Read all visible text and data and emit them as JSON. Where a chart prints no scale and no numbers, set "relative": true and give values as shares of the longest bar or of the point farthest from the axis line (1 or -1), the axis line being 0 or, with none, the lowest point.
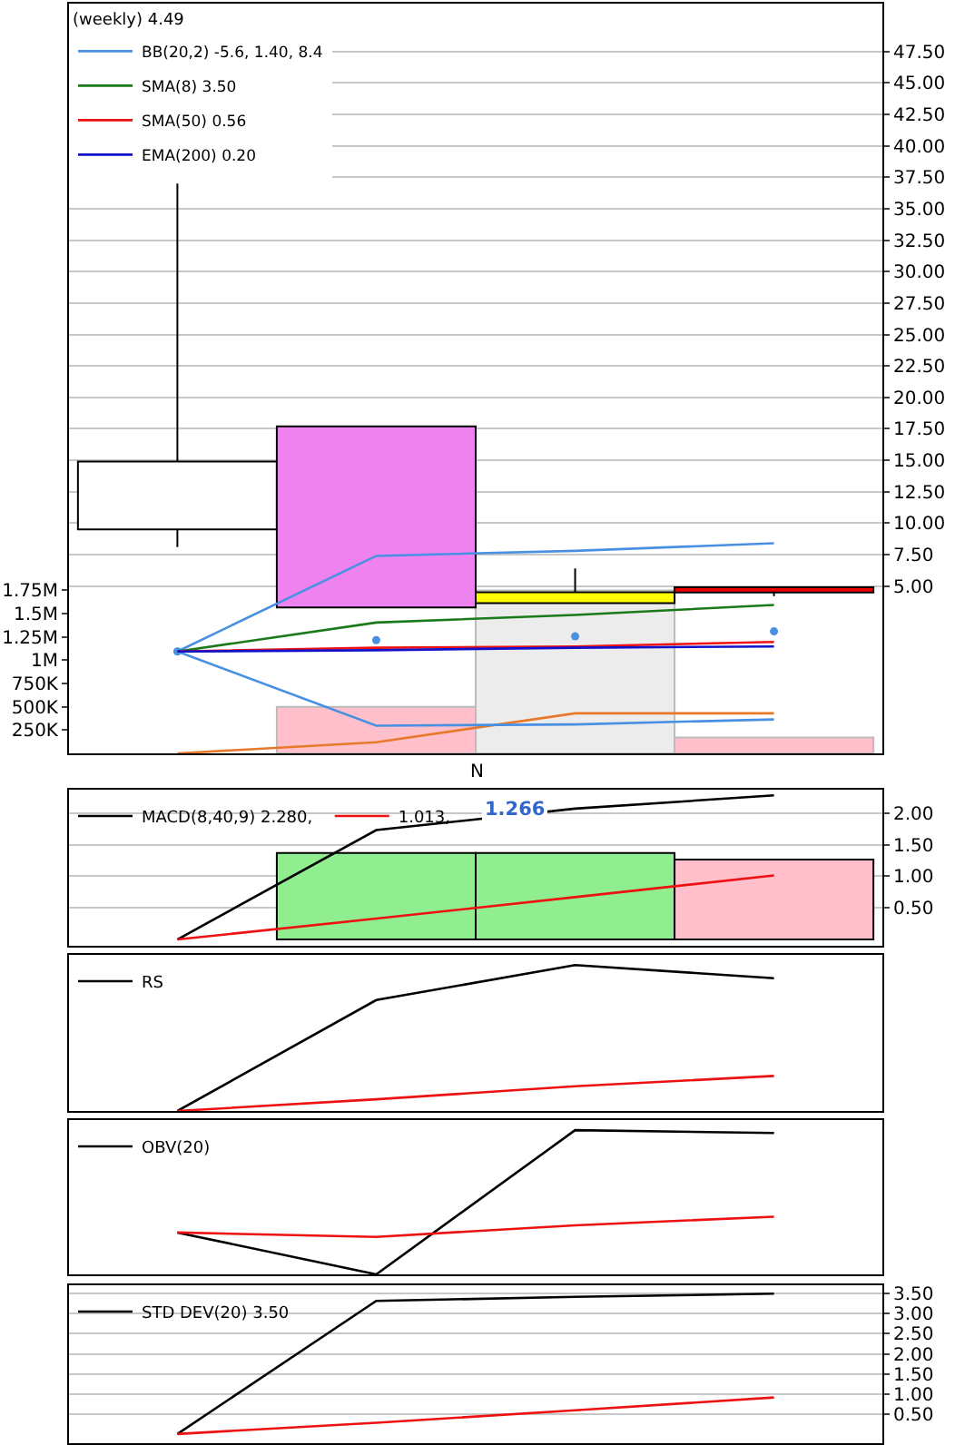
{
  "chart_data": [
    {
      "type": "candlestick",
      "legend_title": "(weekly) 4.49",
      "categories": [
        null,
        null,
        null,
        null
      ],
      "ohlc": [
        [
          9.5,
          37.0,
          8.1,
          14.9
        ],
        [
          17.7,
          17.7,
          3.3,
          3.3
        ],
        [
          3.65,
          6.4,
          3.65,
          4.5
        ],
        [
          4.9,
          4.9,
          4.2,
          4.49
        ]
      ],
      "colors": [
        "#ffffff",
        "#ee82ee",
        "#ffff00",
        "#ee0000"
      ],
      "ylim": [
        -8.3,
        51.3
      ],
      "yticks": [
        {
          "value": 5,
          "label": "5.00"
        },
        {
          "value": 7.5,
          "label": "7.50"
        },
        {
          "value": 10,
          "label": "10.00"
        },
        {
          "value": 12.5,
          "label": "12.50"
        },
        {
          "value": 15,
          "label": "15.00"
        },
        {
          "value": 17.5,
          "label": "17.50"
        },
        {
          "value": 20,
          "label": "20.00"
        },
        {
          "value": 22.5,
          "label": "22.50"
        },
        {
          "value": 25,
          "label": "25.00"
        },
        {
          "value": 27.5,
          "label": "27.50"
        },
        {
          "value": 30,
          "label": "30.00"
        },
        {
          "value": 32.5,
          "label": "32.50"
        },
        {
          "value": 35,
          "label": "35.00"
        },
        {
          "value": 37.5,
          "label": "37.50"
        },
        {
          "value": 40,
          "label": "40.00"
        },
        {
          "value": 42.5,
          "label": "42.50"
        },
        {
          "value": 45,
          "label": "45.00"
        },
        {
          "value": 47.5,
          "label": "47.50"
        }
      ],
      "y2lim": [
        0,
        8050000
      ],
      "y2ticks": [
        {
          "value": 250000,
          "label": "250K"
        },
        {
          "value": 500000,
          "label": "500K"
        },
        {
          "value": 750000,
          "label": "750K"
        },
        {
          "value": 1000000,
          "label": "1M"
        },
        {
          "value": 1250000,
          "label": "1.25M"
        },
        {
          "value": 1500000,
          "label": "1.5M"
        },
        {
          "value": 1750000,
          "label": "1.75M"
        }
      ],
      "grid": "y",
      "legend": "top left",
      "annotations": [
        "N"
      ],
      "series": [
        {
          "type": "bar",
          "axis": "y2",
          "colors": [
            "#ffc0cb",
            "#ffc0cb",
            "#ececec",
            "#ffc0cb"
          ],
          "values": [
            null,
            500000,
            1750000,
            170000
          ]
        },
        {
          "type": "line",
          "axis": "y2",
          "color": "#e8782a",
          "values": [
            0,
            120000,
            430000,
            430000
          ]
        },
        {
          "type": "line",
          "name": "BB(20,2) -5.6, 1.40, 8.4",
          "color": "#4a90e2",
          "values": [
            -0.2,
            7.4,
            7.8,
            8.4
          ]
        },
        {
          "type": "scatter",
          "marker": "circle",
          "color": "#4a90e2",
          "values": [
            -0.2,
            0.7,
            1.0,
            1.4
          ]
        },
        {
          "type": "line",
          "color": "#4a90e2",
          "values": [
            -0.2,
            -6.1,
            -6.0,
            -5.6
          ]
        },
        {
          "type": "line",
          "name": "SMA(8) 3.50",
          "color": "#1a7a1a",
          "values": [
            -0.2,
            2.1,
            2.7,
            3.5
          ]
        },
        {
          "type": "line",
          "name": "SMA(50) 0.56",
          "color": "#ee1111",
          "values": [
            -0.2,
            0.1,
            0.2,
            0.56
          ]
        },
        {
          "type": "line",
          "name": "EMA(200) 0.20",
          "color": "#1111cc",
          "values": [
            -0.2,
            -0.1,
            0.1,
            0.2
          ]
        }
      ]
    },
    {
      "type": "line",
      "categories": [
        null,
        null,
        null,
        null
      ],
      "ylim": [
        -0.1,
        2.37
      ],
      "yticks": [
        {
          "value": 0.5,
          "label": "0.50"
        },
        {
          "value": 1,
          "label": "1.00"
        },
        {
          "value": 1.5,
          "label": "1.50"
        },
        {
          "value": 2,
          "label": "2.00"
        }
      ],
      "grid": "y",
      "legend": "top left",
      "annotations": [
        "1.266"
      ],
      "series": [
        {
          "type": "bar",
          "colors": [
            "#90ee90",
            "#90ee90",
            "#90ee90",
            "#ffc0cb"
          ],
          "values": [
            null,
            1.37,
            1.37,
            1.266
          ]
        },
        {
          "type": "line",
          "name": "MACD(8,40,9) 2.280,",
          "color": "#000000",
          "values": [
            0,
            1.73,
            2.07,
            2.28
          ]
        },
        {
          "type": "line",
          "name": "1.013,",
          "color": "#ee1111",
          "values": [
            0,
            0.33,
            0.67,
            1.013
          ]
        }
      ]
    },
    {
      "type": "line",
      "relative": true,
      "categories": [
        null,
        null,
        null,
        null
      ],
      "legend": "top left",
      "series": [
        {
          "name": "RS",
          "color": "#000000",
          "values": [
            0,
            0.76,
            1,
            0.91
          ]
        },
        {
          "color": "#ee1111",
          "values": [
            0,
            0.08,
            0.17,
            0.24
          ]
        }
      ]
    },
    {
      "type": "line",
      "relative": true,
      "categories": [
        null,
        null,
        null,
        null
      ],
      "legend": "top left",
      "series": [
        {
          "name": "OBV(20)",
          "color": "#000000",
          "values": [
            0.29,
            0,
            1,
            0.98
          ]
        },
        {
          "color": "#ee1111",
          "values": [
            0.29,
            0.26,
            0.34,
            0.4
          ]
        }
      ]
    },
    {
      "type": "line",
      "categories": [
        null,
        null,
        null,
        null
      ],
      "ylim": [
        -0.23,
        3.71
      ],
      "yticks": [
        {
          "value": 0.5,
          "label": "0.50"
        },
        {
          "value": 1,
          "label": "1.00"
        },
        {
          "value": 1.5,
          "label": "1.50"
        },
        {
          "value": 2,
          "label": "2.00"
        },
        {
          "value": 2.5,
          "label": "2.50"
        },
        {
          "value": 3,
          "label": "3.00"
        },
        {
          "value": 3.5,
          "label": "3.50"
        }
      ],
      "grid": "y",
      "legend": "top left",
      "series": [
        {
          "name": "STD DEV(20) 3.50",
          "color": "#000000",
          "values": [
            0,
            3.32,
            3.42,
            3.5
          ]
        },
        {
          "color": "#ee1111",
          "values": [
            0,
            0.28,
            0.59,
            0.91
          ]
        }
      ]
    }
  ]
}
